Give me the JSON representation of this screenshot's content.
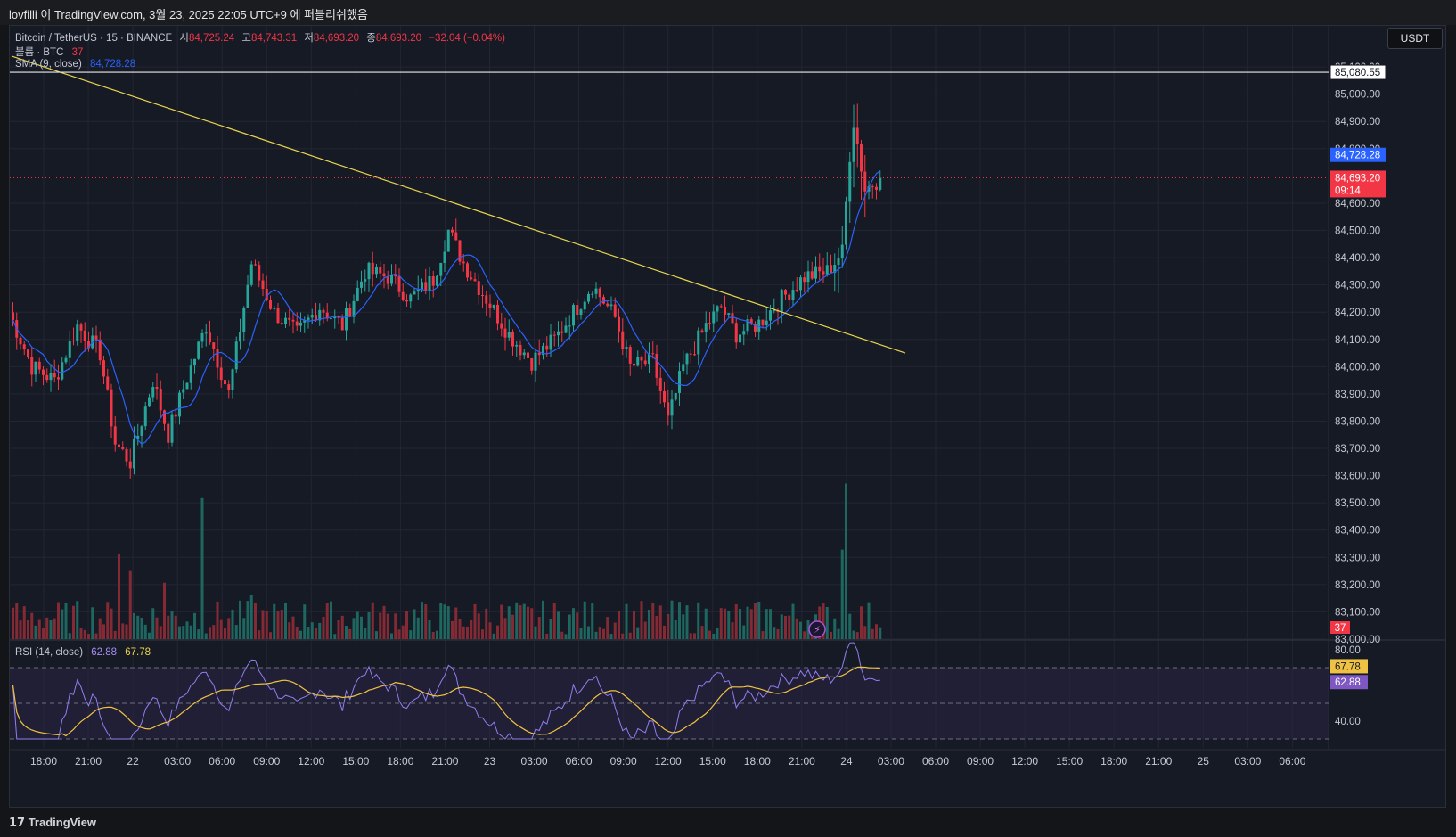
{
  "header": {
    "attribution": "lovfilli 이 TradingView.com, 3월 23, 2025 22:05 UTC+9 에 퍼블리쉬했음"
  },
  "legend": {
    "symbol": "Bitcoin / TetherUS · 15 · BINANCE",
    "open_label": "시",
    "open": "84,725.24",
    "high_label": "고",
    "high": "84,743.31",
    "low_label": "저",
    "low": "84,693.20",
    "close_label": "종",
    "close": "84,693.20",
    "change": "−32.04 (−0.04%)",
    "volume_label": "볼륨 · BTC",
    "volume_value": "37",
    "sma_label": "SMA (9, close)",
    "sma_value": "84,728.28",
    "rsi_label": "RSI (14, close)",
    "rsi_value": "62.88",
    "rsi_ma_value": "67.78"
  },
  "currency_button": "USDT",
  "footer": {
    "logo": "TradingView"
  },
  "colors": {
    "up": "#26a69a",
    "down": "#f23645",
    "sma": "#2962ff",
    "trendline": "#e8d44d",
    "rsi": "#8f7ff0",
    "rsi_ma": "#f0c243",
    "background": "#161a25"
  },
  "chart_data": {
    "type": "candlestick",
    "interval": "15",
    "price_axis": {
      "ticks": [
        "85,100.00",
        "85,000.00",
        "84,900.00",
        "84,800.00",
        "84,600.00",
        "84,500.00",
        "84,400.00",
        "84,300.00",
        "84,200.00",
        "84,100.00",
        "84,000.00",
        "83,900.00",
        "83,800.00",
        "83,700.00",
        "83,600.00",
        "83,500.00",
        "83,400.00",
        "83,300.00",
        "83,200.00",
        "83,100.00",
        "83,000.00"
      ],
      "range": [
        83000,
        85120
      ],
      "labels": [
        {
          "text": "85,080.55",
          "value": 85080.55,
          "role": "horizontal-line"
        },
        {
          "text": "84,728.28",
          "value": 84728.28,
          "role": "sma"
        },
        {
          "text": "84,693.20",
          "value": 84693.2,
          "role": "last-price"
        },
        {
          "text": "09:14",
          "value": 84693.2,
          "role": "countdown"
        },
        {
          "text": "37",
          "role": "volume"
        }
      ]
    },
    "time_axis": {
      "ticks": [
        "18:00",
        "21:00",
        "22",
        "03:00",
        "06:00",
        "09:00",
        "12:00",
        "15:00",
        "18:00",
        "21:00",
        "23",
        "03:00",
        "06:00",
        "09:00",
        "12:00",
        "15:00",
        "18:00",
        "21:00",
        "24",
        "03:00",
        "06:00",
        "09:00",
        "12:00",
        "15:00",
        "18:00",
        "21:00",
        "25",
        "03:00",
        "06:00"
      ]
    },
    "horizontal_line": 85080.55,
    "trendline": {
      "start": {
        "bar": 0,
        "price": 85140
      },
      "end": {
        "bar": 236,
        "price": 84050
      }
    },
    "candles": {
      "count": 230,
      "waypoints": [
        {
          "bar": 0,
          "price": 84200
        },
        {
          "bar": 6,
          "price": 84000
        },
        {
          "bar": 12,
          "price": 83950
        },
        {
          "bar": 18,
          "price": 84150
        },
        {
          "bar": 24,
          "price": 84050
        },
        {
          "bar": 28,
          "price": 83720
        },
        {
          "bar": 32,
          "price": 83650
        },
        {
          "bar": 38,
          "price": 83950
        },
        {
          "bar": 42,
          "price": 83750
        },
        {
          "bar": 46,
          "price": 83920
        },
        {
          "bar": 52,
          "price": 84150
        },
        {
          "bar": 58,
          "price": 83900
        },
        {
          "bar": 64,
          "price": 84380
        },
        {
          "bar": 70,
          "price": 84200
        },
        {
          "bar": 76,
          "price": 84120
        },
        {
          "bar": 82,
          "price": 84220
        },
        {
          "bar": 88,
          "price": 84150
        },
        {
          "bar": 94,
          "price": 84350
        },
        {
          "bar": 100,
          "price": 84330
        },
        {
          "bar": 106,
          "price": 84250
        },
        {
          "bar": 112,
          "price": 84320
        },
        {
          "bar": 116,
          "price": 84500
        },
        {
          "bar": 120,
          "price": 84380
        },
        {
          "bar": 126,
          "price": 84250
        },
        {
          "bar": 132,
          "price": 84120
        },
        {
          "bar": 138,
          "price": 84020
        },
        {
          "bar": 144,
          "price": 84100
        },
        {
          "bar": 150,
          "price": 84220
        },
        {
          "bar": 154,
          "price": 84300
        },
        {
          "bar": 160,
          "price": 84180
        },
        {
          "bar": 164,
          "price": 84000
        },
        {
          "bar": 170,
          "price": 84020
        },
        {
          "bar": 174,
          "price": 83800
        },
        {
          "bar": 178,
          "price": 84000
        },
        {
          "bar": 184,
          "price": 84150
        },
        {
          "bar": 188,
          "price": 84220
        },
        {
          "bar": 192,
          "price": 84120
        },
        {
          "bar": 198,
          "price": 84160
        },
        {
          "bar": 204,
          "price": 84250
        },
        {
          "bar": 210,
          "price": 84330
        },
        {
          "bar": 216,
          "price": 84350
        },
        {
          "bar": 220,
          "price": 84420
        },
        {
          "bar": 222,
          "price": 84780
        },
        {
          "bar": 223,
          "price": 84900
        },
        {
          "bar": 226,
          "price": 84650
        },
        {
          "bar": 230,
          "price": 84693
        }
      ]
    },
    "sma_period": 9,
    "volume": {
      "typical_range": [
        5,
        40
      ],
      "spikes": [
        {
          "bar": 28,
          "value": 88
        },
        {
          "bar": 31,
          "value": 70
        },
        {
          "bar": 40,
          "value": 58
        },
        {
          "bar": 50,
          "value": 145
        },
        {
          "bar": 63,
          "value": 45
        },
        {
          "bar": 219,
          "value": 92
        },
        {
          "bar": 220,
          "value": 160
        }
      ]
    },
    "rsi": {
      "period": 14,
      "levels": {
        "upper": 70,
        "middle": 50,
        "lower": 30
      },
      "axis_ticks": [
        "80.00",
        "40.00"
      ],
      "range": [
        25,
        85
      ],
      "current": 62.88,
      "ma": 67.78
    }
  }
}
